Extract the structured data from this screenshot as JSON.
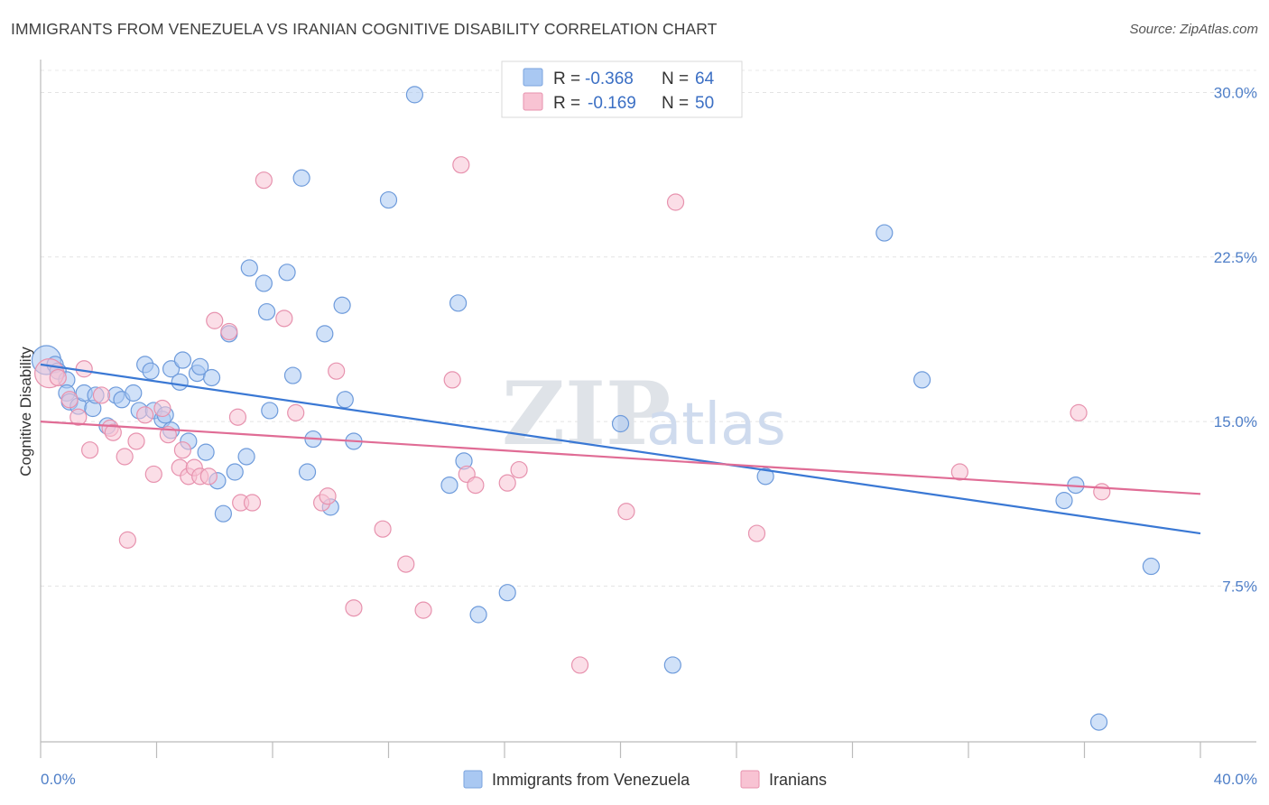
{
  "title": "IMMIGRANTS FROM VENEZUELA VS IRANIAN COGNITIVE DISABILITY CORRELATION CHART",
  "source": "Source: ZipAtlas.com",
  "watermark": {
    "part1": "ZIP",
    "part2": "atlas"
  },
  "legend": {
    "r_label": "R =",
    "n_label": "N =",
    "rows": [
      {
        "r": "-0.368",
        "n": "64",
        "color": "#a9c8f2",
        "stroke": "#7aa3de"
      },
      {
        "r": "-0.169",
        "n": "50",
        "color": "#f8c3d3",
        "stroke": "#e792ae"
      }
    ]
  },
  "bottom_legend": [
    "Immigrants from Venezuela",
    "Iranians"
  ],
  "chart_data": {
    "type": "scatter",
    "ylabel": "Cognitive Disability",
    "xlim": [
      0,
      40
    ],
    "ylim": [
      0.4,
      31.5
    ],
    "x_tick_labels": [
      "0.0%",
      "40.0%"
    ],
    "y_ticks": [
      7.5,
      15.0,
      22.5,
      30.0
    ],
    "y_tick_labels": [
      "7.5%",
      "15.0%",
      "22.5%",
      "30.0%"
    ],
    "grid": true,
    "legend_position": "top-center",
    "series": [
      {
        "name": "Immigrants from Venezuela",
        "color": "#a9c8f2",
        "stroke": "#6e9bdb",
        "line_color": "#3a78d4",
        "trend": {
          "x": [
            0,
            40
          ],
          "y": [
            17.6,
            9.9
          ]
        },
        "points": [
          [
            0.2,
            17.8
          ],
          [
            0.5,
            17.6
          ],
          [
            0.6,
            17.3
          ],
          [
            0.9,
            16.9
          ],
          [
            0.9,
            16.3
          ],
          [
            1.0,
            15.9
          ],
          [
            1.3,
            15.7
          ],
          [
            1.5,
            16.3
          ],
          [
            1.8,
            15.6
          ],
          [
            1.9,
            16.2
          ],
          [
            2.3,
            14.8
          ],
          [
            2.6,
            16.2
          ],
          [
            2.8,
            16.0
          ],
          [
            3.2,
            16.3
          ],
          [
            3.4,
            15.5
          ],
          [
            3.6,
            17.6
          ],
          [
            3.8,
            17.3
          ],
          [
            3.9,
            15.5
          ],
          [
            4.2,
            15.1
          ],
          [
            4.3,
            15.3
          ],
          [
            4.5,
            14.6
          ],
          [
            4.5,
            17.4
          ],
          [
            4.8,
            16.8
          ],
          [
            4.9,
            17.8
          ],
          [
            5.1,
            14.1
          ],
          [
            5.4,
            17.2
          ],
          [
            5.5,
            17.5
          ],
          [
            5.7,
            13.6
          ],
          [
            5.9,
            17.0
          ],
          [
            6.1,
            12.3
          ],
          [
            6.3,
            10.8
          ],
          [
            6.5,
            19.0
          ],
          [
            6.7,
            12.7
          ],
          [
            7.1,
            13.4
          ],
          [
            7.2,
            22.0
          ],
          [
            7.7,
            21.3
          ],
          [
            7.8,
            20.0
          ],
          [
            7.9,
            15.5
          ],
          [
            8.5,
            21.8
          ],
          [
            8.7,
            17.1
          ],
          [
            9.0,
            26.1
          ],
          [
            9.2,
            12.7
          ],
          [
            9.4,
            14.2
          ],
          [
            9.8,
            19.0
          ],
          [
            10.0,
            11.1
          ],
          [
            10.4,
            20.3
          ],
          [
            10.5,
            16.0
          ],
          [
            10.8,
            14.1
          ],
          [
            12.0,
            25.1
          ],
          [
            12.9,
            29.9
          ],
          [
            14.1,
            12.1
          ],
          [
            14.4,
            20.4
          ],
          [
            14.6,
            13.2
          ],
          [
            15.1,
            6.2
          ],
          [
            16.1,
            7.2
          ],
          [
            20.0,
            14.9
          ],
          [
            21.8,
            3.9
          ],
          [
            25.0,
            12.5
          ],
          [
            29.1,
            23.6
          ],
          [
            35.3,
            11.4
          ],
          [
            35.7,
            12.1
          ],
          [
            38.3,
            8.4
          ],
          [
            36.5,
            1.3
          ],
          [
            30.4,
            16.9
          ]
        ]
      },
      {
        "name": "Iranians",
        "color": "#f8c3d3",
        "stroke": "#e792ae",
        "line_color": "#e06c95",
        "trend": {
          "x": [
            0,
            40
          ],
          "y": [
            15.0,
            11.7
          ]
        },
        "points": [
          [
            0.3,
            17.2
          ],
          [
            0.6,
            17.0
          ],
          [
            1.0,
            16.0
          ],
          [
            1.3,
            15.2
          ],
          [
            1.5,
            17.4
          ],
          [
            1.7,
            13.7
          ],
          [
            2.1,
            16.2
          ],
          [
            2.4,
            14.7
          ],
          [
            2.5,
            14.5
          ],
          [
            2.9,
            13.4
          ],
          [
            3.0,
            9.6
          ],
          [
            3.3,
            14.1
          ],
          [
            3.6,
            15.3
          ],
          [
            3.9,
            12.6
          ],
          [
            4.2,
            15.6
          ],
          [
            4.4,
            14.4
          ],
          [
            4.8,
            12.9
          ],
          [
            4.9,
            13.7
          ],
          [
            5.1,
            12.5
          ],
          [
            5.3,
            12.9
          ],
          [
            5.5,
            12.5
          ],
          [
            5.8,
            12.5
          ],
          [
            6.0,
            19.6
          ],
          [
            6.5,
            19.1
          ],
          [
            6.8,
            15.2
          ],
          [
            6.9,
            11.3
          ],
          [
            7.3,
            11.3
          ],
          [
            7.7,
            26.0
          ],
          [
            8.4,
            19.7
          ],
          [
            8.8,
            15.4
          ],
          [
            9.7,
            11.3
          ],
          [
            9.9,
            11.6
          ],
          [
            10.2,
            17.3
          ],
          [
            10.8,
            6.5
          ],
          [
            11.8,
            10.1
          ],
          [
            12.6,
            8.5
          ],
          [
            13.2,
            6.4
          ],
          [
            14.2,
            16.9
          ],
          [
            14.5,
            26.7
          ],
          [
            14.7,
            12.6
          ],
          [
            15.0,
            12.1
          ],
          [
            16.1,
            12.2
          ],
          [
            16.5,
            12.8
          ],
          [
            18.6,
            3.9
          ],
          [
            20.2,
            10.9
          ],
          [
            21.9,
            25.0
          ],
          [
            24.7,
            9.9
          ],
          [
            31.7,
            12.7
          ],
          [
            35.8,
            15.4
          ],
          [
            36.6,
            11.8
          ]
        ]
      }
    ]
  }
}
